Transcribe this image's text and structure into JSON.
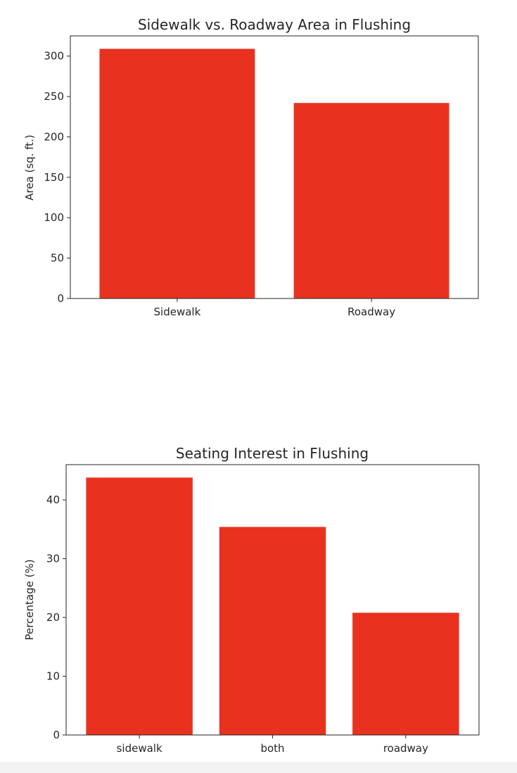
{
  "chart_data": [
    {
      "type": "bar",
      "title": "Sidewalk vs. Roadway Area in Flushing",
      "xlabel": "",
      "ylabel": "Area (sq. ft.)",
      "categories": [
        "Sidewalk",
        "Roadway"
      ],
      "values": [
        309,
        242
      ],
      "ylim": [
        0,
        325
      ],
      "yticks": [
        0,
        50,
        100,
        150,
        200,
        250,
        300
      ],
      "bar_color": "#e8321f",
      "grid": false,
      "legend": "none"
    },
    {
      "type": "bar",
      "title": "Seating Interest in Flushing",
      "xlabel": "",
      "ylabel": "Percentage (%)",
      "categories": [
        "sidewalk",
        "both",
        "roadway"
      ],
      "values": [
        43.8,
        35.4,
        20.8
      ],
      "ylim": [
        0,
        46
      ],
      "yticks": [
        0,
        10,
        20,
        30,
        40
      ],
      "bar_color": "#e8321f",
      "grid": false,
      "legend": "none"
    }
  ]
}
